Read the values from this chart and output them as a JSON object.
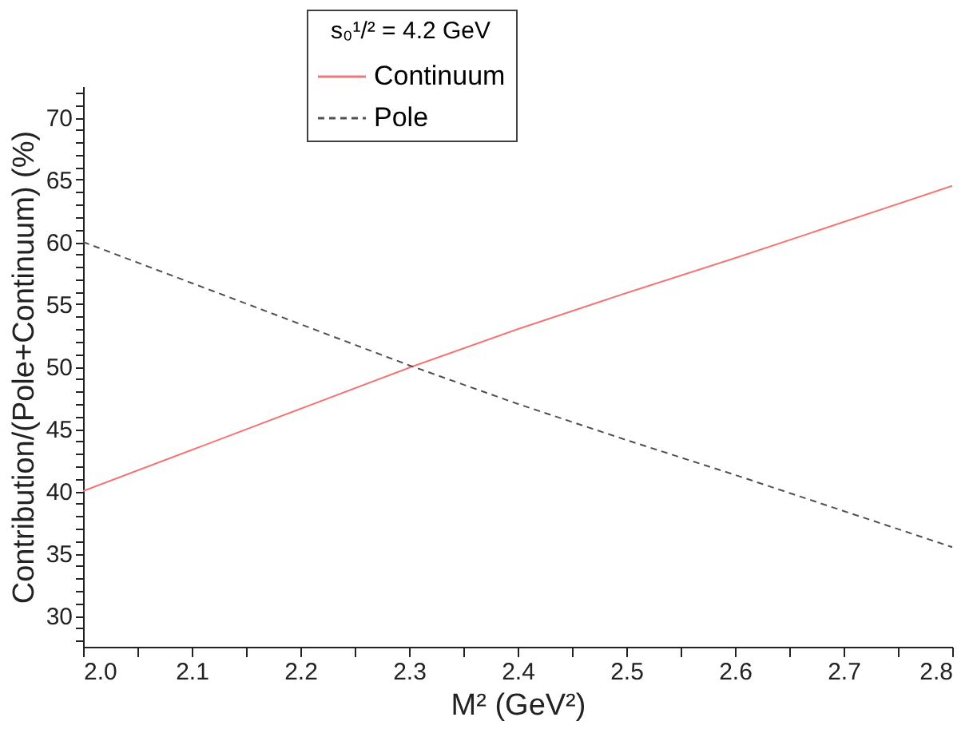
{
  "chart_data": {
    "type": "line",
    "xlabel": "M² (GeV²)",
    "ylabel": "Contribution/(Pole+Continuum) (%)",
    "legend_title": "s₀¹/² = 4.2 GeV",
    "x": [
      2.0,
      2.1,
      2.2,
      2.3,
      2.4,
      2.5,
      2.6,
      2.7,
      2.8
    ],
    "series": [
      {
        "name": "Continuum",
        "color": "#f07878",
        "line_style": "solid",
        "values": [
          40,
          43.3,
          46.6,
          49.9,
          53.0,
          55.9,
          58.7,
          61.6,
          64.5
        ]
      },
      {
        "name": "Pole",
        "color": "#505050",
        "line_style": "dashed",
        "values": [
          60,
          56.7,
          53.4,
          50.1,
          47.0,
          44.1,
          41.3,
          38.4,
          35.5
        ]
      }
    ],
    "xlim": [
      2.0,
      2.8
    ],
    "ylim": [
      27.5,
      72.5
    ],
    "xticks": [
      {
        "value": 2.0,
        "label": "2.0"
      },
      {
        "value": 2.05,
        "label": null
      },
      2.1,
      {
        "value": 2.15,
        "label": null
      },
      2.2,
      {
        "value": 2.25,
        "label": null
      },
      2.3,
      {
        "value": 2.35,
        "label": null
      },
      2.4,
      {
        "value": 2.45,
        "label": null
      },
      2.5,
      {
        "value": 2.55,
        "label": null
      },
      2.6,
      {
        "value": 2.65,
        "label": null
      },
      2.7,
      {
        "value": 2.75,
        "label": null
      },
      2.8
    ],
    "yticks": [
      {
        "value": 28,
        "label": null
      },
      {
        "value": 29,
        "label": null
      },
      30,
      {
        "value": 31,
        "label": null
      },
      {
        "value": 32,
        "label": null
      },
      {
        "value": 33,
        "label": null
      },
      {
        "value": 34,
        "label": null
      },
      35,
      {
        "value": 36,
        "label": null
      },
      {
        "value": 37,
        "label": null
      },
      {
        "value": 38,
        "label": null
      },
      {
        "value": 39,
        "label": null
      },
      40,
      {
        "value": 41,
        "label": null
      },
      {
        "value": 42,
        "label": null
      },
      {
        "value": 43,
        "label": null
      },
      {
        "value": 44,
        "label": null
      },
      45,
      {
        "value": 46,
        "label": null
      },
      {
        "value": 47,
        "label": null
      },
      {
        "value": 48,
        "label": null
      },
      {
        "value": 49,
        "label": null
      },
      50,
      {
        "value": 51,
        "label": null
      },
      {
        "value": 52,
        "label": null
      },
      {
        "value": 53,
        "label": null
      },
      {
        "value": 54,
        "label": null
      },
      55,
      {
        "value": 56,
        "label": null
      },
      {
        "value": 57,
        "label": null
      },
      {
        "value": 58,
        "label": null
      },
      {
        "value": 59,
        "label": null
      },
      60,
      {
        "value": 61,
        "label": null
      },
      {
        "value": 62,
        "label": null
      },
      {
        "value": 63,
        "label": null
      },
      {
        "value": 64,
        "label": null
      },
      65,
      {
        "value": 66,
        "label": null
      },
      {
        "value": 67,
        "label": null
      },
      {
        "value": 68,
        "label": null
      },
      {
        "value": 69,
        "label": null
      },
      70,
      {
        "value": 71,
        "label": null
      },
      {
        "value": 72,
        "label": null
      }
    ],
    "grid": false,
    "legend": "top",
    "marker": "none"
  }
}
